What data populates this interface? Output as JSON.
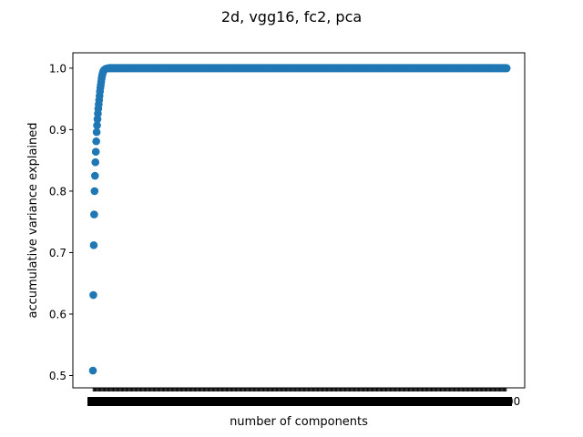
{
  "chart_data": {
    "type": "scatter",
    "title": "2d, vgg16, fc2, pca",
    "xlabel": "number of components",
    "ylabel": "accumulative variance explained",
    "xlim": [
      0,
      1000
    ],
    "ylim": [
      0.48,
      1.025
    ],
    "yticks": [
      0.5,
      0.6,
      0.7,
      0.8,
      0.9,
      1.0
    ],
    "ytick_labels": [
      "0.5",
      "0.6",
      "0.7",
      "0.8",
      "0.9",
      "1.0"
    ],
    "xtick_labels": [
      "1",
      "1000"
    ],
    "grid": false,
    "legend": "none",
    "marker_color": "#1f77b4",
    "series": [
      {
        "x": [
          1,
          2,
          3,
          4,
          5,
          6,
          7,
          8,
          9,
          10,
          11,
          12,
          13,
          14,
          15,
          16,
          17,
          18,
          19,
          20,
          21,
          22,
          23,
          24,
          25,
          26,
          28,
          30,
          32,
          35,
          40,
          45,
          50,
          60,
          70,
          80,
          100,
          150,
          200,
          250,
          300,
          350,
          400,
          450,
          500,
          550,
          600,
          650,
          700,
          750,
          800,
          850,
          900,
          950,
          1000
        ],
        "y": [
          0.508,
          0.631,
          0.712,
          0.762,
          0.8,
          0.825,
          0.847,
          0.864,
          0.881,
          0.896,
          0.907,
          0.917,
          0.926,
          0.934,
          0.941,
          0.948,
          0.955,
          0.962,
          0.968,
          0.973,
          0.978,
          0.983,
          0.987,
          0.99,
          0.993,
          0.995,
          0.997,
          0.998,
          0.999,
          0.9995,
          1.0,
          1.0,
          1.0,
          1.0,
          1.0,
          1.0,
          1.0,
          1.0,
          1.0,
          1.0,
          1.0,
          1.0,
          1.0,
          1.0,
          1.0,
          1.0,
          1.0,
          1.0,
          1.0,
          1.0,
          1.0,
          1.0,
          1.0,
          1.0,
          1.0
        ]
      }
    ]
  }
}
